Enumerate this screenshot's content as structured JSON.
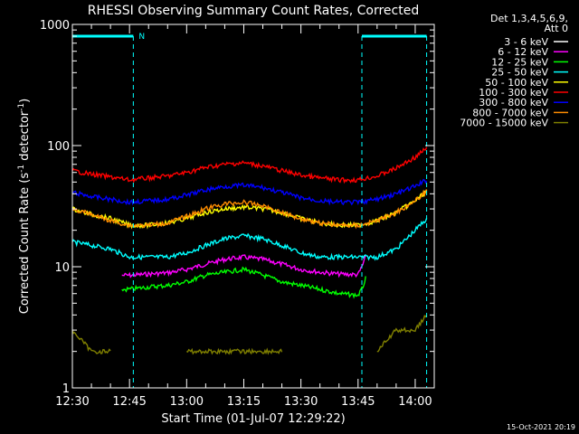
{
  "chart_data": {
    "type": "line",
    "title": "RHESSI Observing Summary Count Rates, Corrected",
    "ylabel": "Corrected Count Rate (s^-1 detector^-1)",
    "ylabel_parts": {
      "base": "Corrected Count Rate (s",
      "sup1": "-1",
      "mid": " detector",
      "sup2": "-1",
      "end": ")"
    },
    "xlabel": "Start Time (01-Jul-07 12:29:22)",
    "footer": "15-Oct-2021 20:19",
    "legend_header": [
      "Det 1,3,4,5,6,9,",
      "Att 0"
    ],
    "yscale": "log",
    "ylim": [
      1,
      1000
    ],
    "y_ticks": [
      {
        "value": 1,
        "label": "1"
      },
      {
        "value": 10,
        "label": "10"
      },
      {
        "value": 100,
        "label": "100"
      },
      {
        "value": 1000,
        "label": "1000"
      }
    ],
    "xlim": [
      "12:30",
      "14:05"
    ],
    "x_ticks": [
      {
        "value": "12:30",
        "label": "12:30"
      },
      {
        "value": "12:45",
        "label": "12:45"
      },
      {
        "value": "13:00",
        "label": "13:00"
      },
      {
        "value": "13:15",
        "label": "13:15"
      },
      {
        "value": "13:30",
        "label": "13:30"
      },
      {
        "value": "13:45",
        "label": "13:45"
      },
      {
        "value": "14:00",
        "label": "14:00"
      }
    ],
    "flags": {
      "color": "#00ffff",
      "level": 800,
      "label": "N",
      "spans": [
        [
          "12:30",
          "12:46"
        ],
        [
          "13:46",
          "14:03"
        ]
      ],
      "markers": [
        "12:30",
        "12:46",
        "13:46",
        "14:03"
      ]
    },
    "series": [
      {
        "name": "3 - 6 keV",
        "color": "#ffffff",
        "x": [
          "12:30",
          "12:35",
          "12:40",
          "12:45",
          "12:50",
          "12:55",
          "13:00",
          "13:05",
          "13:10",
          "13:15",
          "13:20",
          "13:25",
          "13:30",
          "13:35",
          "13:40",
          "13:45",
          "13:50",
          "13:55",
          "14:00",
          "14:03"
        ],
        "y": [
          null,
          null,
          null,
          null,
          null,
          null,
          null,
          null,
          null,
          null,
          null,
          null,
          null,
          null,
          null,
          null,
          null,
          null,
          null,
          null
        ]
      },
      {
        "name": "6 - 12 keV",
        "color": "#ff00ff",
        "x": [
          "12:43",
          "12:45",
          "12:50",
          "12:55",
          "13:00",
          "13:05",
          "13:10",
          "13:15",
          "13:20",
          "13:25",
          "13:30",
          "13:35",
          "13:40",
          "13:45",
          "13:46",
          "13:47"
        ],
        "y": [
          8.5,
          8.5,
          8.7,
          8.9,
          9.5,
          10.5,
          11.5,
          12,
          11.5,
          10.5,
          9.5,
          9,
          8.7,
          8.6,
          10,
          12
        ]
      },
      {
        "name": "12 - 25 keV",
        "color": "#00ff00",
        "x": [
          "12:43",
          "12:45",
          "12:50",
          "12:55",
          "13:00",
          "13:05",
          "13:10",
          "13:15",
          "13:20",
          "13:25",
          "13:30",
          "13:35",
          "13:40",
          "13:45",
          "13:46",
          "13:47"
        ],
        "y": [
          6.5,
          6.5,
          6.8,
          7,
          7.5,
          8.5,
          9,
          9.5,
          8.5,
          7.5,
          7,
          6.5,
          6,
          5.8,
          6.5,
          8
        ]
      },
      {
        "name": "25 - 50 keV",
        "color": "#00ffff",
        "x": [
          "12:30",
          "12:35",
          "12:40",
          "12:45",
          "12:50",
          "12:55",
          "13:00",
          "13:05",
          "13:10",
          "13:15",
          "13:20",
          "13:25",
          "13:30",
          "13:35",
          "13:40",
          "13:45",
          "13:50",
          "13:55",
          "14:00",
          "14:03"
        ],
        "y": [
          16,
          15,
          14,
          12,
          12,
          12,
          13,
          15,
          17,
          18,
          17,
          15,
          13,
          12,
          12,
          12,
          12,
          14,
          20,
          25
        ]
      },
      {
        "name": "50 - 100 keV",
        "color": "#ffff00",
        "x": [
          "12:30",
          "12:35",
          "12:40",
          "12:45",
          "12:50",
          "12:55",
          "13:00",
          "13:05",
          "13:10",
          "13:15",
          "13:20",
          "13:25",
          "13:30",
          "13:35",
          "13:40",
          "13:45",
          "13:50",
          "13:55",
          "14:00",
          "14:03"
        ],
        "y": [
          30,
          27,
          25,
          22,
          22,
          23,
          25,
          28,
          30,
          31,
          30,
          28,
          25,
          23,
          22,
          22,
          24,
          28,
          35,
          42
        ]
      },
      {
        "name": "100 - 300 keV",
        "color": "#ff0000",
        "x": [
          "12:30",
          "12:35",
          "12:40",
          "12:45",
          "12:50",
          "12:55",
          "13:00",
          "13:05",
          "13:10",
          "13:15",
          "13:20",
          "13:25",
          "13:30",
          "13:35",
          "13:40",
          "13:45",
          "13:50",
          "13:55",
          "14:00",
          "14:03"
        ],
        "y": [
          62,
          58,
          55,
          52,
          54,
          56,
          60,
          66,
          70,
          72,
          68,
          62,
          57,
          54,
          52,
          52,
          56,
          65,
          80,
          95
        ]
      },
      {
        "name": "300 - 800 keV",
        "color": "#0000ff",
        "x": [
          "12:30",
          "12:35",
          "12:40",
          "12:45",
          "12:50",
          "12:55",
          "13:00",
          "13:05",
          "13:10",
          "13:15",
          "13:20",
          "13:25",
          "13:30",
          "13:35",
          "13:40",
          "13:45",
          "13:50",
          "13:55",
          "14:00",
          "14:03"
        ],
        "y": [
          41,
          38,
          36,
          34,
          35,
          36,
          39,
          43,
          46,
          47,
          45,
          41,
          37,
          35,
          34,
          34,
          36,
          40,
          46,
          52
        ]
      },
      {
        "name": "800 - 7000 keV",
        "color": "#ff8c00",
        "x": [
          "12:30",
          "12:35",
          "12:40",
          "12:45",
          "12:50",
          "12:55",
          "13:00",
          "13:05",
          "13:10",
          "13:15",
          "13:20",
          "13:25",
          "13:30",
          "13:35",
          "13:40",
          "13:45",
          "13:50",
          "13:55",
          "14:00",
          "14:03"
        ],
        "y": [
          30,
          27,
          24,
          22,
          22,
          23,
          26,
          30,
          33,
          34,
          32,
          28,
          25,
          23,
          22,
          22,
          24,
          28,
          35,
          42
        ]
      },
      {
        "name": "7000 - 15000 keV",
        "color": "#808000",
        "x": [
          "12:30",
          "12:35",
          "12:40",
          "12:45",
          "12:50",
          "12:55",
          "13:00",
          "13:05",
          "13:10",
          "13:15",
          "13:20",
          "13:25",
          "13:30",
          "13:35",
          "13:40",
          "13:45",
          "13:50",
          "13:55",
          "14:00",
          "14:03"
        ],
        "y": [
          3,
          2,
          2,
          null,
          null,
          null,
          2,
          2,
          2,
          2,
          2,
          2,
          null,
          null,
          null,
          null,
          2,
          3,
          3,
          4
        ]
      }
    ]
  }
}
